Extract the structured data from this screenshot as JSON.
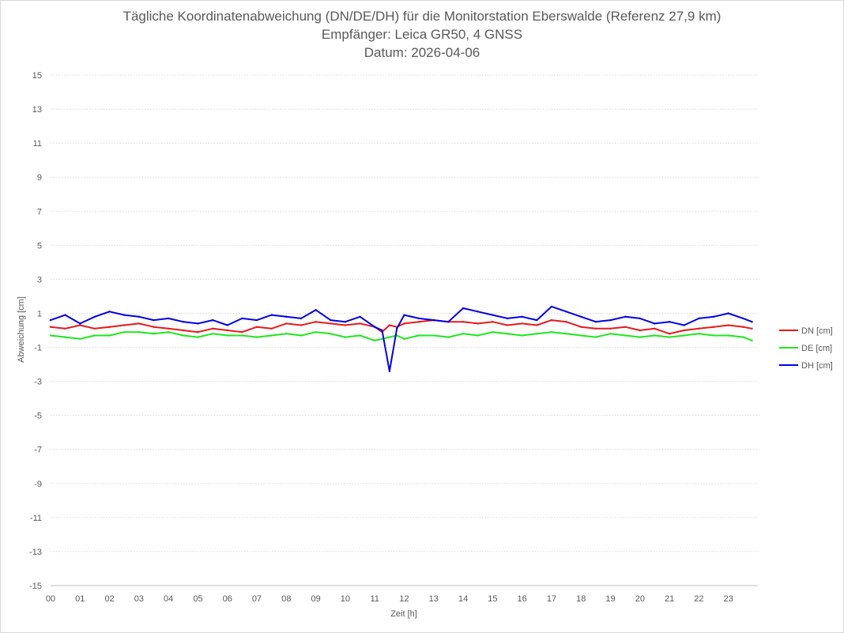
{
  "chart_data": {
    "type": "line",
    "title": [
      "Tägliche Koordinatenabweichung (DN/DE/DH) für die Monitorstation Eberswalde (Referenz 27,9 km)",
      "Empfänger: Leica GR50, 4 GNSS",
      "Datum: 2026-04-06"
    ],
    "xlabel": "Zeit [h]",
    "ylabel": "Abweichung [cm]",
    "xlim": [
      0,
      24
    ],
    "ylim": [
      -15,
      15
    ],
    "x_ticks": [
      "00",
      "01",
      "02",
      "03",
      "04",
      "05",
      "06",
      "07",
      "08",
      "09",
      "10",
      "11",
      "12",
      "13",
      "14",
      "15",
      "16",
      "17",
      "18",
      "19",
      "20",
      "21",
      "22",
      "23"
    ],
    "y_ticks": [
      15,
      13,
      11,
      9,
      7,
      5,
      3,
      1,
      -1,
      -3,
      -5,
      -7,
      -9,
      -11,
      -13,
      -15
    ],
    "grid": "horizontal dotted",
    "legend_position": "right",
    "x": [
      0,
      0.5,
      1,
      1.5,
      2,
      2.5,
      3,
      3.5,
      4,
      4.5,
      5,
      5.5,
      6,
      6.5,
      7,
      7.5,
      8,
      8.5,
      9,
      9.5,
      10,
      10.5,
      11,
      11.25,
      11.5,
      11.75,
      12,
      12.5,
      13,
      13.5,
      14,
      14.5,
      15,
      15.5,
      16,
      16.5,
      17,
      17.5,
      18,
      18.5,
      19,
      19.5,
      20,
      20.5,
      21,
      21.5,
      22,
      22.5,
      23,
      23.5,
      23.8
    ],
    "series": [
      {
        "name": "DN [cm]",
        "color": "#e8191b",
        "values": [
          0.2,
          0.1,
          0.3,
          0.1,
          0.2,
          0.3,
          0.4,
          0.2,
          0.1,
          0.0,
          -0.1,
          0.1,
          0.0,
          -0.1,
          0.2,
          0.1,
          0.4,
          0.3,
          0.5,
          0.4,
          0.3,
          0.4,
          0.2,
          -0.1,
          0.3,
          0.2,
          0.4,
          0.5,
          0.6,
          0.5,
          0.5,
          0.4,
          0.5,
          0.3,
          0.4,
          0.3,
          0.6,
          0.5,
          0.2,
          0.1,
          0.1,
          0.2,
          0.0,
          0.1,
          -0.2,
          0.0,
          0.1,
          0.2,
          0.3,
          0.2,
          0.1
        ]
      },
      {
        "name": "DE [cm]",
        "color": "#1ee81e",
        "values": [
          -0.3,
          -0.4,
          -0.5,
          -0.3,
          -0.3,
          -0.1,
          -0.1,
          -0.2,
          -0.1,
          -0.3,
          -0.4,
          -0.2,
          -0.3,
          -0.3,
          -0.4,
          -0.3,
          -0.2,
          -0.3,
          -0.1,
          -0.2,
          -0.4,
          -0.3,
          -0.6,
          -0.5,
          -0.4,
          -0.3,
          -0.5,
          -0.3,
          -0.3,
          -0.4,
          -0.2,
          -0.3,
          -0.1,
          -0.2,
          -0.3,
          -0.2,
          -0.1,
          -0.2,
          -0.3,
          -0.4,
          -0.2,
          -0.3,
          -0.4,
          -0.3,
          -0.4,
          -0.3,
          -0.2,
          -0.3,
          -0.3,
          -0.4,
          -0.6
        ]
      },
      {
        "name": "DH [cm]",
        "color": "#0000e6",
        "values": [
          0.6,
          0.9,
          0.4,
          0.8,
          1.1,
          0.9,
          0.8,
          0.6,
          0.7,
          0.5,
          0.4,
          0.6,
          0.3,
          0.7,
          0.6,
          0.9,
          0.8,
          0.7,
          1.2,
          0.6,
          0.5,
          0.8,
          0.2,
          0.0,
          -2.4,
          0.1,
          0.9,
          0.7,
          0.6,
          0.5,
          1.3,
          1.1,
          0.9,
          0.7,
          0.8,
          0.6,
          1.4,
          1.1,
          0.8,
          0.5,
          0.6,
          0.8,
          0.7,
          0.4,
          0.5,
          0.3,
          0.7,
          0.8,
          1.0,
          0.7,
          0.5
        ]
      }
    ]
  }
}
